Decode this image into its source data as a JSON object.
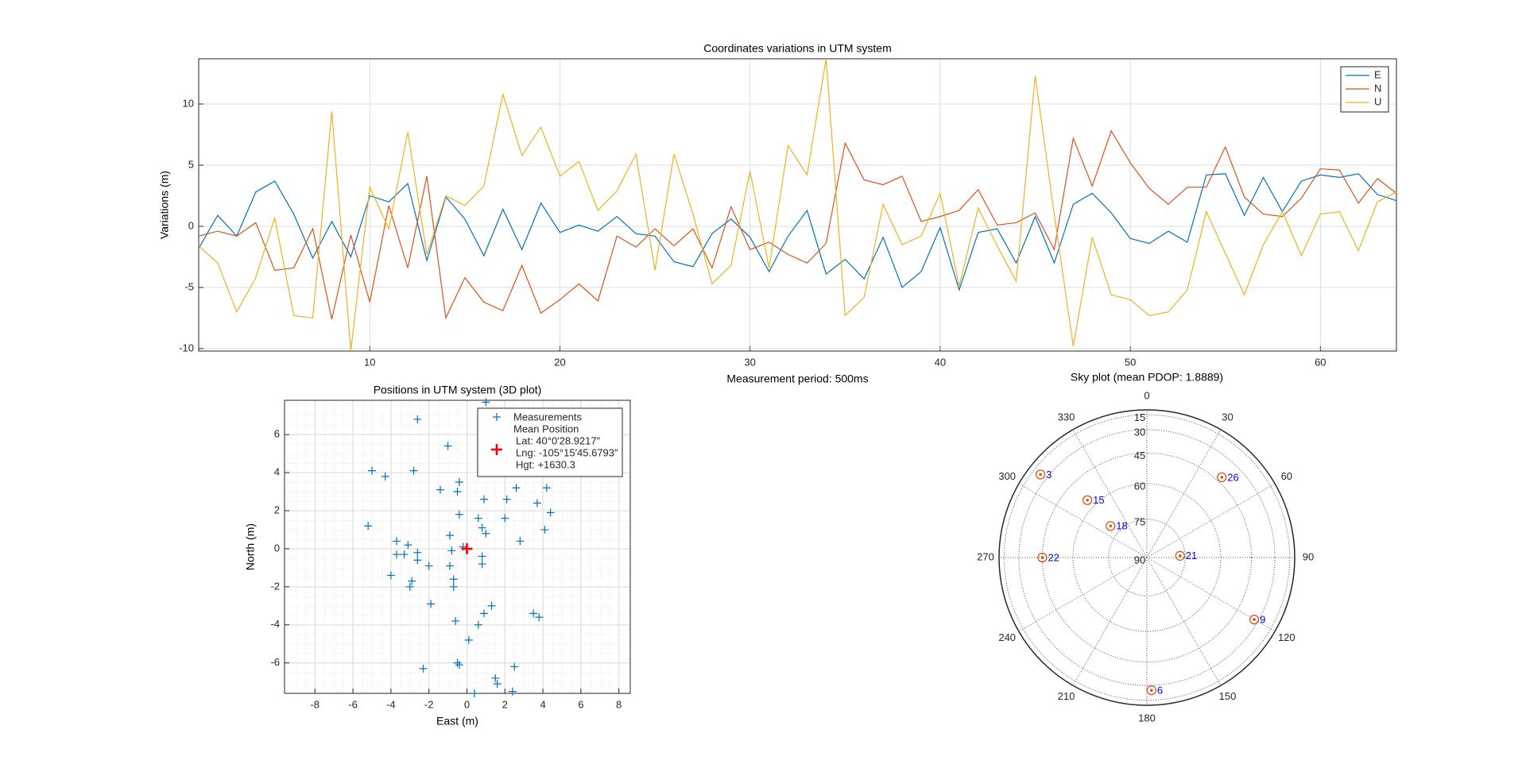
{
  "chart_data": [
    {
      "type": "line",
      "title": "Coordinates variations in UTM system",
      "x_label": "Measurement period: 500ms",
      "y_label": "Variations (m)",
      "x": [
        1,
        2,
        3,
        4,
        5,
        6,
        7,
        8,
        9,
        10,
        11,
        12,
        13,
        14,
        15,
        16,
        17,
        18,
        19,
        20,
        21,
        22,
        23,
        24,
        25,
        26,
        27,
        28,
        29,
        30,
        31,
        32,
        33,
        34,
        35,
        36,
        37,
        38,
        39,
        40,
        41,
        42,
        43,
        44,
        45,
        46,
        47,
        48,
        49,
        50,
        51,
        52,
        53,
        54,
        55,
        56,
        57,
        58,
        59,
        60,
        61,
        62,
        63,
        64
      ],
      "series": [
        {
          "name": "E",
          "color": "#0072BD",
          "values": [
            -1.8,
            0.9,
            -0.8,
            2.8,
            3.7,
            1.0,
            -2.6,
            0.4,
            -2.5,
            2.5,
            2.0,
            3.5,
            -2.8,
            2.4,
            0.6,
            -2.4,
            1.4,
            -1.9,
            1.9,
            -0.5,
            0.1,
            -0.4,
            0.8,
            -0.6,
            -0.8,
            -2.9,
            -3.3,
            -0.6,
            0.6,
            -0.9,
            -3.7,
            -0.8,
            1.3,
            -3.9,
            -2.7,
            -4.3,
            -0.9,
            -5.0,
            -3.7,
            -0.1,
            -5.2,
            -0.5,
            -0.2,
            -3.0,
            0.8,
            -3.0,
            1.8,
            2.7,
            1.1,
            -1.0,
            -1.4,
            -0.4,
            -1.3,
            4.2,
            4.3,
            0.9,
            4.0,
            1.2,
            3.7,
            4.2,
            4.0,
            4.3,
            2.6,
            2.1
          ]
        },
        {
          "name": "N",
          "color": "#D95319",
          "values": [
            -0.8,
            -0.4,
            -0.8,
            0.3,
            -3.6,
            -3.4,
            -0.2,
            -7.6,
            -0.7,
            -6.2,
            1.7,
            -3.4,
            4.1,
            -7.5,
            -4.2,
            -6.2,
            -6.9,
            -3.2,
            -7.1,
            -6.0,
            -4.7,
            -6.1,
            -0.8,
            -1.7,
            -0.2,
            -1.6,
            -0.2,
            -3.4,
            1.6,
            -1.9,
            -1.3,
            -2.3,
            -3.0,
            -1.4,
            6.8,
            3.8,
            3.4,
            4.1,
            0.4,
            0.8,
            1.3,
            3.0,
            0.1,
            0.3,
            1.1,
            -1.9,
            7.2,
            3.3,
            7.8,
            5.2,
            3.1,
            1.8,
            3.2,
            3.2,
            6.5,
            2.4,
            1.0,
            0.8,
            2.3,
            4.7,
            4.6,
            1.9,
            3.9,
            2.7
          ]
        },
        {
          "name": "U",
          "color": "#EDB120",
          "values": [
            -1.6,
            -3.0,
            -7.0,
            -4.2,
            0.7,
            -7.3,
            -7.5,
            9.4,
            -10.2,
            3.2,
            -0.2,
            7.7,
            -2.3,
            2.5,
            1.7,
            3.3,
            10.8,
            5.8,
            8.1,
            4.1,
            5.3,
            1.3,
            2.9,
            5.9,
            -3.6,
            5.9,
            1.0,
            -4.7,
            -3.2,
            4.5,
            -3.4,
            6.6,
            4.2,
            13.7,
            -7.3,
            -5.8,
            1.8,
            -1.5,
            -0.8,
            2.7,
            -4.9,
            1.5,
            -1.6,
            -4.5,
            12.3,
            1.0,
            -9.8,
            -0.9,
            -5.6,
            -6.0,
            -7.3,
            -7.0,
            -5.2,
            1.2,
            -2.2,
            -5.6,
            -1.5,
            1.2,
            -2.4,
            1.0,
            1.2,
            -2.0,
            2.0,
            2.8
          ]
        }
      ],
      "xlim": [
        1,
        64
      ],
      "ylim": [
        -10.2,
        13.7
      ],
      "xticks": [
        10,
        20,
        30,
        40,
        50,
        60
      ],
      "yticks": [
        -10,
        -5,
        0,
        5,
        10
      ],
      "grid": true,
      "legend": "northeast"
    },
    {
      "type": "scatter",
      "title": "Positions in UTM system (3D plot)",
      "x_label": "East (m)",
      "y_label": "North (m)",
      "series": [
        {
          "name": "Measurements",
          "color": "#0072BD",
          "x": [
            1.0,
            -2.6,
            -1.0,
            -5.0,
            -4.3,
            -2.8,
            -1.4,
            -0.4,
            -0.5,
            0.9,
            2.1,
            2.6,
            4.2,
            3.7,
            4.4,
            -0.4,
            0.6,
            2.0,
            -5.2,
            0.8,
            1.0,
            -0.9,
            4.1,
            2.8,
            -3.7,
            -3.1,
            -0.2,
            -0.8,
            -2.6,
            -3.7,
            -3.3,
            0.8,
            0.8,
            -2.6,
            -2.0,
            -0.9,
            -4.0,
            -2.9,
            -3.0,
            -0.7,
            -0.7,
            -1.9,
            1.3,
            0.9,
            3.5,
            3.8,
            -0.6,
            0.6,
            0.1,
            -0.5,
            -0.4,
            -2.3,
            2.5,
            1.5,
            1.6,
            0.4,
            2.4
          ],
          "y": [
            7.7,
            6.8,
            5.4,
            4.1,
            3.8,
            4.1,
            3.1,
            3.5,
            3.0,
            2.6,
            2.6,
            3.2,
            3.2,
            2.4,
            1.9,
            1.8,
            1.6,
            1.6,
            1.2,
            1.1,
            0.8,
            0.7,
            1.0,
            0.4,
            0.4,
            0.2,
            0.1,
            -0.1,
            -0.2,
            -0.3,
            -0.3,
            -0.4,
            -0.8,
            -0.6,
            -0.9,
            -0.9,
            -1.4,
            -1.7,
            -2.0,
            -1.6,
            -2.0,
            -2.9,
            -3.0,
            -3.4,
            -3.4,
            -3.6,
            -3.8,
            -4.0,
            -4.8,
            -6.0,
            -6.1,
            -6.3,
            -6.2,
            -6.8,
            -7.1,
            -7.6,
            -7.5
          ]
        },
        {
          "name": "Mean Position",
          "color": "#FF0000",
          "x": [
            0
          ],
          "y": [
            0
          ]
        }
      ],
      "legend_notes": [
        "Lat: 40°0′28.9217″",
        "Lng: -105°15′45.6793″",
        "Hgt: +1630.3"
      ],
      "xlim": [
        -9.6,
        8.6
      ],
      "ylim": [
        -7.6,
        7.8
      ],
      "xticks": [
        -8,
        -6,
        -4,
        -2,
        0,
        2,
        4,
        6,
        8
      ],
      "yticks": [
        -6,
        -4,
        -2,
        0,
        2,
        4,
        6
      ],
      "grid": true,
      "minor_grid": true,
      "legend": "northeast"
    },
    {
      "type": "polar",
      "title": "Sky plot (mean PDOP: 1.8889)",
      "labels": [
        "3",
        "26",
        "15",
        "18",
        "22",
        "21",
        "9",
        "6"
      ],
      "azimuth": [
        308,
        43,
        314,
        311,
        270,
        87,
        120,
        178
      ],
      "elevation": [
        24,
        42,
        56,
        71,
        45,
        77,
        33,
        26
      ],
      "rticks": [
        15,
        30,
        45,
        60,
        75,
        90
      ],
      "thetaticks": [
        0,
        30,
        60,
        90,
        120,
        150,
        180,
        210,
        240,
        270,
        300,
        330
      ],
      "marker_color": "#D95319",
      "label_color": "#0000FF"
    }
  ]
}
